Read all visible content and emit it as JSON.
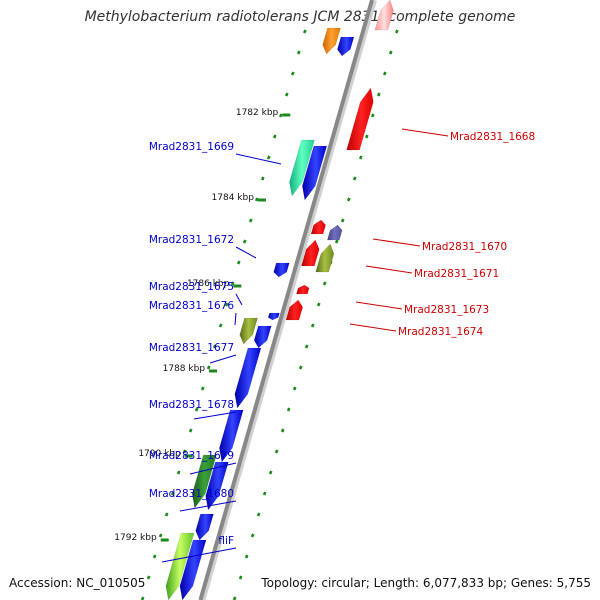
{
  "title": "Methylobacterium radiotolerans JCM 2831, complete genome",
  "footer": {
    "accession": "Accession: NC_010505",
    "summary": "Topology: circular; Length: 6,077,833 bp; Genes: 5,755"
  },
  "colors": {
    "backbone": "#888888",
    "left_labels": "#0000cc",
    "right_labels": "#cc0000",
    "ticks": "#1a8a1a"
  },
  "scale_labels": [
    "1782 kbp",
    "1784 kbp",
    "1786 kbp",
    "1788 kbp",
    "1790 kbp",
    "1792 kbp"
  ],
  "genes": [
    {
      "label": "Mrad2831_1669",
      "side": "left"
    },
    {
      "label": "Mrad2831_1672",
      "side": "left"
    },
    {
      "label": "Mrad2831_1675",
      "side": "left"
    },
    {
      "label": "Mrad2831_1676",
      "side": "left"
    },
    {
      "label": "Mrad2831_1677",
      "side": "left"
    },
    {
      "label": "Mrad2831_1678",
      "side": "left"
    },
    {
      "label": "Mrad2831_1679",
      "side": "left"
    },
    {
      "label": "Mrad2831_1680",
      "side": "left"
    },
    {
      "label": "fliF",
      "side": "left"
    },
    {
      "label": "Mrad2831_1668",
      "side": "right"
    },
    {
      "label": "Mrad2831_1670",
      "side": "right"
    },
    {
      "label": "Mrad2831_1671",
      "side": "right"
    },
    {
      "label": "Mrad2831_1673",
      "side": "right"
    },
    {
      "label": "Mrad2831_1674",
      "side": "right"
    }
  ]
}
